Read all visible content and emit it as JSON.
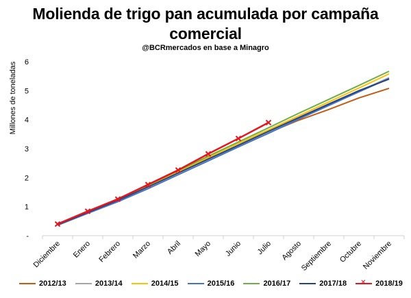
{
  "chart_data": {
    "type": "line",
    "title": "Molienda de trigo pan acumulada por campaña comercial",
    "subtitle": "@BCRmercados en base a Minagro",
    "ylabel": "Millones de toneladas",
    "xlabel": "",
    "ylim": [
      0,
      6
    ],
    "yticks": [
      "-",
      "1",
      "2",
      "3",
      "4",
      "5",
      "6"
    ],
    "categories": [
      "Diciembre",
      "Enero",
      "Febrero",
      "Marzo",
      "Abril",
      "Mayo",
      "Junio",
      "Julio",
      "Agosto",
      "Septiembre",
      "Octubre",
      "Noviembre"
    ],
    "grid": false,
    "legend_position": "bottom",
    "series": [
      {
        "name": "2012/13",
        "color": "#c55a11",
        "marker": false,
        "values": [
          0.4,
          0.82,
          1.22,
          1.7,
          2.18,
          2.65,
          3.1,
          3.55,
          3.98,
          4.35,
          4.75,
          5.08
        ]
      },
      {
        "name": "2013/14",
        "color": "#a5a5a5",
        "marker": false,
        "values": [
          0.39,
          0.8,
          1.2,
          1.68,
          2.16,
          2.64,
          3.1,
          3.57,
          4.05,
          4.52,
          4.98,
          5.45
        ]
      },
      {
        "name": "2014/15",
        "color": "#ffc000",
        "marker": false,
        "values": [
          0.4,
          0.83,
          1.25,
          1.72,
          2.2,
          2.7,
          3.18,
          3.65,
          4.13,
          4.61,
          5.09,
          5.58
        ]
      },
      {
        "name": "2015/16",
        "color": "#4472c4",
        "marker": false,
        "values": [
          0.36,
          0.77,
          1.17,
          1.62,
          2.1,
          2.58,
          3.06,
          3.53,
          4.02,
          4.49,
          4.96,
          5.42
        ]
      },
      {
        "name": "2016/17",
        "color": "#70ad47",
        "marker": false,
        "values": [
          0.4,
          0.83,
          1.27,
          1.74,
          2.24,
          2.74,
          3.23,
          3.72,
          4.22,
          4.7,
          5.18,
          5.67
        ]
      },
      {
        "name": "2017/18",
        "color": "#264478",
        "marker": false,
        "values": [
          0.38,
          0.8,
          1.22,
          1.68,
          2.16,
          2.64,
          3.12,
          3.6,
          4.07,
          4.54,
          5.0,
          5.4
        ]
      },
      {
        "name": "2018/19",
        "color": "#e8141b",
        "marker": true,
        "values": [
          0.4,
          0.84,
          1.26,
          1.76,
          2.26,
          2.82,
          3.35,
          3.9,
          null,
          null,
          null,
          null
        ]
      }
    ]
  }
}
